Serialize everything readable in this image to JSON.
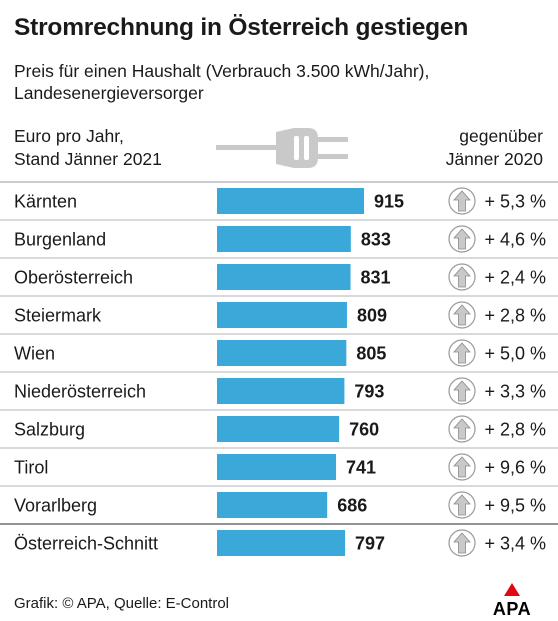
{
  "title": "Stromrechnung in Österreich gestiegen",
  "subtitle_line1": "Preis für einen Haushalt (Verbrauch 3.500 kWh/Jahr),",
  "subtitle_line2": "Landesenergieversorger",
  "header_left_line1": "Euro pro Jahr,",
  "header_left_line2": "Stand Jänner 2021",
  "header_right_line1": "gegenüber",
  "header_right_line2": "Jänner 2020",
  "footer": "Grafik: © APA, Quelle: E-Control",
  "logo_text": "APA",
  "colors": {
    "bar": "#3aa8d8",
    "arrow_fill": "#c9c9c9",
    "line": "#9a9a9a",
    "logo_red": "#e30613"
  },
  "icons": {
    "header": "power-plug-icon",
    "change": "up-arrow-circle-icon"
  },
  "chart_data": {
    "type": "bar",
    "orientation": "horizontal",
    "categories": [
      "Kärnten",
      "Burgenland",
      "Oberösterreich",
      "Steiermark",
      "Wien",
      "Niederösterreich",
      "Salzburg",
      "Tirol",
      "Vorarlberg",
      "Österreich-Schnitt"
    ],
    "values": [
      915,
      833,
      831,
      809,
      805,
      793,
      760,
      741,
      686,
      797
    ],
    "value_labels": [
      "915",
      "833",
      "831",
      "809",
      "805",
      "793",
      "760",
      "741",
      "686",
      "797"
    ],
    "change_labels": [
      "+ 5,3 %",
      "+ 4,6 %",
      "+ 2,4 %",
      "+ 2,8 %",
      "+ 5,0 %",
      "+ 3,3 %",
      "+ 2,8 %",
      "+ 9,6 %",
      "+ 9,5 %",
      "+ 3,4 %"
    ],
    "xlim": [
      0,
      915
    ]
  }
}
